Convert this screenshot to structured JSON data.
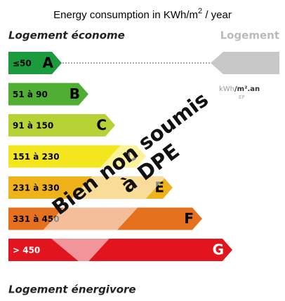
{
  "header": {
    "title": "Energy consumption in KWh/m",
    "title_superscript": "2",
    "title_suffix": " / year",
    "top_left": "Logement économe",
    "top_right": "Logement"
  },
  "bands": [
    {
      "range": "≤50",
      "letter": "A",
      "color": "#1b9a3e",
      "text_color": "#000000"
    },
    {
      "range": "51 à 90",
      "letter": "B",
      "color": "#4fae34",
      "text_color": "#000000"
    },
    {
      "range": "91 à 150",
      "letter": "C",
      "color": "#b6d235",
      "text_color": "#000000"
    },
    {
      "range": "151 à 230",
      "letter": "D",
      "color": "#f3e51e",
      "text_color": "#000000"
    },
    {
      "range": "231 à 330",
      "letter": "E",
      "color": "#f0b21b",
      "text_color": "#000000"
    },
    {
      "range": "331 à 450",
      "letter": "F",
      "color": "#e5701d",
      "text_color": "#000000"
    },
    {
      "range": "> 450",
      "letter": "G",
      "color": "#e2151f",
      "text_color": "#ffffff"
    }
  ],
  "unit": {
    "text": "kWh",
    "sub": "EP",
    "suffix": "/m².an"
  },
  "stamp": {
    "line1": "Bien non soumis",
    "line2": "à DPE"
  },
  "footer": "Logement énergivore"
}
